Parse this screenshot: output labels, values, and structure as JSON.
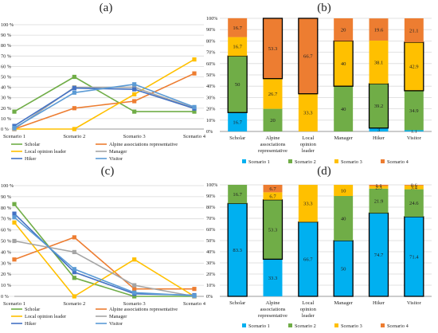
{
  "figure": {
    "colors": {
      "scholar": "#70ad47",
      "alpine": "#ed7d31",
      "local": "#ffc000",
      "manager": "#a5a5a5",
      "hiker": "#4472c4",
      "visitor": "#5b9bd5",
      "scenario_1": "#00b0f0",
      "scenario_2": "#70ad47",
      "scenario_3": "#ffc000",
      "scenario_4": "#ed7d31",
      "grid": "#d9d9d9"
    }
  },
  "chart_data": [
    {
      "panel": "(a)",
      "type": "line",
      "categories": [
        "Scenario 1",
        "Scenario 2",
        "Scenario 3",
        "Scenario 4"
      ],
      "ylim": [
        0,
        100
      ],
      "y_ticks": [
        "0 %",
        "10 %",
        "20 %",
        "30 %",
        "40 %",
        "50 %",
        "60 %",
        "70 %",
        "80 %",
        "90 %",
        "100 %"
      ],
      "grid": true,
      "legend": "bottom",
      "series": [
        {
          "name": "Scholar",
          "values": [
            16.7,
            50.0,
            16.7,
            16.7
          ],
          "color_key": "scholar"
        },
        {
          "name": "Alpine associations representative",
          "values": [
            0,
            20.0,
            26.7,
            53.3
          ],
          "color_key": "alpine"
        },
        {
          "name": "Local opinion leader",
          "values": [
            0,
            0,
            33.3,
            66.7
          ],
          "color_key": "local"
        },
        {
          "name": "Manager",
          "values": [
            0,
            40.0,
            40.0,
            20.0
          ],
          "color_key": "manager"
        },
        {
          "name": "Hiker",
          "values": [
            3.0,
            39.2,
            38.1,
            19.6
          ],
          "color_key": "hiker"
        },
        {
          "name": "Visitor",
          "values": [
            1.1,
            34.9,
            42.9,
            21.1
          ],
          "color_key": "visitor"
        }
      ]
    },
    {
      "panel": "(b)",
      "type": "bar",
      "stacked": true,
      "categories": [
        "Scholar",
        "Alpine associations representative",
        "Local opinion leader",
        "Manager",
        "Hiker",
        "Visitor"
      ],
      "ylim": [
        0,
        100
      ],
      "y_ticks": [
        "0%",
        "10%",
        "20%",
        "30%",
        "40%",
        "50%",
        "60%",
        "70%",
        "80%",
        "90%",
        "100%"
      ],
      "legend": "bottom",
      "series": [
        {
          "name": "Scenario 1",
          "values": [
            16.7,
            0,
            0,
            0,
            3.0,
            1.1
          ],
          "color_key": "scenario_1"
        },
        {
          "name": "Scenario 2",
          "values": [
            50.0,
            20.0,
            0,
            40.0,
            39.2,
            34.9
          ],
          "color_key": "scenario_2"
        },
        {
          "name": "Scenario 3",
          "values": [
            16.7,
            26.7,
            33.3,
            40.0,
            38.1,
            42.9
          ],
          "color_key": "scenario_3"
        },
        {
          "name": "Scenario 4",
          "values": [
            16.7,
            53.3,
            66.7,
            20.0,
            19.6,
            21.1
          ],
          "color_key": "scenario_4"
        }
      ],
      "outlined_series_per_category": [
        2,
        4,
        4,
        3,
        2,
        3
      ]
    },
    {
      "panel": "(c)",
      "type": "line",
      "categories": [
        "Scenario 1",
        "Scenario 2",
        "Scenario 3",
        "Scenario 4"
      ],
      "ylim": [
        0,
        100
      ],
      "y_ticks": [
        "0 %",
        "10 %",
        "20 %",
        "30 %",
        "40 %",
        "50 %",
        "60 %",
        "70 %",
        "80 %",
        "90 %",
        "100 %"
      ],
      "grid": true,
      "legend": "bottom",
      "series": [
        {
          "name": "Scholar",
          "values": [
            83.3,
            16.7,
            0,
            0
          ],
          "color_key": "scholar"
        },
        {
          "name": "Alpine associations representative",
          "values": [
            33.3,
            53.3,
            6.7,
            6.7
          ],
          "color_key": "alpine"
        },
        {
          "name": "Local opinion leader",
          "values": [
            66.7,
            0,
            33.3,
            0
          ],
          "color_key": "local"
        },
        {
          "name": "Manager",
          "values": [
            50.0,
            40.0,
            10.0,
            0
          ],
          "color_key": "manager"
        },
        {
          "name": "Hiker",
          "values": [
            74.7,
            21.9,
            2.3,
            1.1
          ],
          "color_key": "hiker"
        },
        {
          "name": "Visitor",
          "values": [
            71.4,
            24.6,
            3.4,
            0.6
          ],
          "color_key": "visitor"
        }
      ]
    },
    {
      "panel": "(d)",
      "type": "bar",
      "stacked": true,
      "categories": [
        "Scholar",
        "Alpine associations representative",
        "Local opinion leader",
        "Manager",
        "Hiker",
        "Visitor"
      ],
      "ylim": [
        0,
        100
      ],
      "y_ticks": [
        "0%",
        "10%",
        "20%",
        "30%",
        "40%",
        "50%",
        "60%",
        "70%",
        "80%",
        "90%",
        "100%"
      ],
      "legend": "bottom",
      "series": [
        {
          "name": "Scenario 1",
          "values": [
            83.3,
            33.3,
            66.7,
            50.0,
            74.7,
            71.4
          ],
          "color_key": "scenario_1"
        },
        {
          "name": "Scenario 2",
          "values": [
            16.7,
            53.3,
            0,
            40.0,
            21.9,
            24.6
          ],
          "color_key": "scenario_2"
        },
        {
          "name": "Scenario 3",
          "values": [
            0,
            6.7,
            33.3,
            10.0,
            2.3,
            3.4
          ],
          "color_key": "scenario_3"
        },
        {
          "name": "Scenario 4",
          "values": [
            0,
            6.7,
            0,
            0,
            1.1,
            0.6
          ],
          "color_key": "scenario_4"
        }
      ],
      "outlined_series_per_category": [
        1,
        2,
        1,
        1,
        1,
        1
      ]
    }
  ]
}
